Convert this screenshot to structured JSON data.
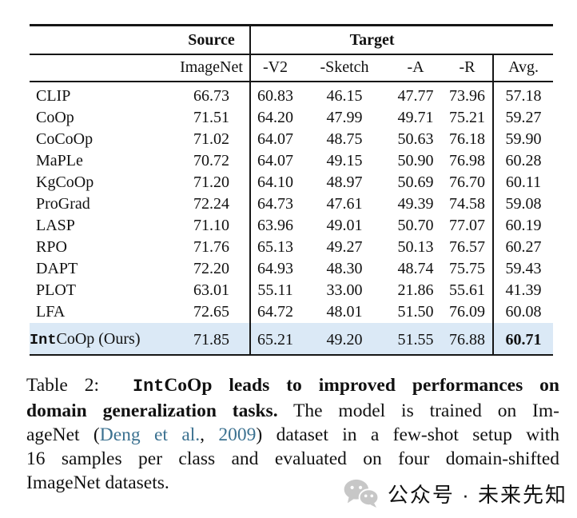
{
  "table": {
    "group_header": {
      "source": "Source",
      "target": "Target"
    },
    "col_headers": [
      "ImageNet",
      "-V2",
      "-Sketch",
      "-A",
      "-R",
      "Avg."
    ],
    "rows": [
      {
        "method": "CLIP",
        "values": [
          "66.73",
          "60.83",
          "46.15",
          "47.77",
          "73.96",
          "57.18"
        ]
      },
      {
        "method": "CoOp",
        "values": [
          "71.51",
          "64.20",
          "47.99",
          "49.71",
          "75.21",
          "59.27"
        ]
      },
      {
        "method": "CoCoOp",
        "values": [
          "71.02",
          "64.07",
          "48.75",
          "50.63",
          "76.18",
          "59.90"
        ]
      },
      {
        "method": "MaPLe",
        "values": [
          "70.72",
          "64.07",
          "49.15",
          "50.90",
          "76.98",
          "60.28"
        ]
      },
      {
        "method": "KgCoOp",
        "values": [
          "71.20",
          "64.10",
          "48.97",
          "50.69",
          "76.70",
          "60.11"
        ]
      },
      {
        "method": "ProGrad",
        "values": [
          "72.24",
          "64.73",
          "47.61",
          "49.39",
          "74.58",
          "59.08"
        ]
      },
      {
        "method": "LASP",
        "values": [
          "71.10",
          "63.96",
          "49.01",
          "50.70",
          "77.07",
          "60.19"
        ]
      },
      {
        "method": "RPO",
        "values": [
          "71.76",
          "65.13",
          "49.27",
          "50.13",
          "76.57",
          "60.27"
        ]
      },
      {
        "method": "DAPT",
        "values": [
          "72.20",
          "64.93",
          "48.30",
          "48.74",
          "75.75",
          "59.43"
        ]
      },
      {
        "method": "PLOT",
        "values": [
          "63.01",
          "55.11",
          "33.00",
          "21.86",
          "55.61",
          "41.39"
        ]
      },
      {
        "method": "LFA",
        "values": [
          "72.65",
          "64.72",
          "48.01",
          "51.50",
          "76.09",
          "60.08"
        ]
      }
    ],
    "highlight_row": {
      "method_mono": "Int",
      "method_rest": "CoOp (Ours)",
      "values": [
        "71.85",
        "65.21",
        "49.20",
        "51.55",
        "76.88",
        "60.71"
      ],
      "bold_value_index": 5
    },
    "highlight_color": "#dbe9f6"
  },
  "caption": {
    "lines": [
      {
        "justify": true,
        "segments": [
          {
            "t": "Table 2:  ",
            "s": "plain"
          },
          {
            "t": "Int",
            "s": "boldmono"
          },
          {
            "t": "CoOp leads to improved performances on",
            "s": "bold"
          }
        ]
      },
      {
        "justify": true,
        "segments": [
          {
            "t": "domain generalization tasks.",
            "s": "bold"
          },
          {
            "t": " The model is trained on Im-",
            "s": "plain"
          }
        ]
      },
      {
        "justify": true,
        "segments": [
          {
            "t": "ageNet (",
            "s": "plain"
          },
          {
            "t": "Deng et al.",
            "s": "link"
          },
          {
            "t": ", ",
            "s": "plain"
          },
          {
            "t": "2009",
            "s": "link"
          },
          {
            "t": ") dataset in a few-shot setup with",
            "s": "plain"
          }
        ]
      },
      {
        "justify": true,
        "segments": [
          {
            "t": "16 samples per class and evaluated on four domain-shifted",
            "s": "plain"
          }
        ]
      },
      {
        "justify": false,
        "segments": [
          {
            "t": "ImageNet datasets.",
            "s": "plain"
          }
        ]
      }
    ],
    "link_color": "#3b7190"
  },
  "watermark": {
    "icon": "wechat-icon",
    "text": "公众号 · 未来先知",
    "color": "#c7c7c7"
  }
}
